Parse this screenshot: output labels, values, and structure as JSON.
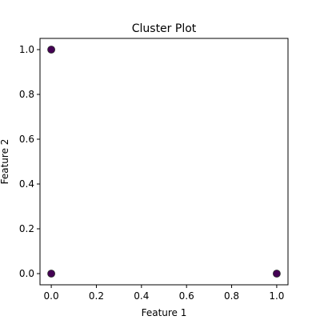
{
  "chart_data": {
    "type": "scatter",
    "title": "Cluster Plot",
    "xlabel": "Feature 1",
    "ylabel": "Feature 2",
    "xlim": [
      -0.05,
      1.05
    ],
    "ylim": [
      -0.05,
      1.05
    ],
    "xticks": [
      0.0,
      0.2,
      0.4,
      0.6,
      0.8,
      1.0
    ],
    "yticks": [
      0.0,
      0.2,
      0.4,
      0.6,
      0.8,
      1.0
    ],
    "grid": false,
    "marker_color": "#440154",
    "points": [
      {
        "x": 0.0,
        "y": 1.0
      },
      {
        "x": 0.0,
        "y": 0.0
      },
      {
        "x": 1.0,
        "y": 0.0
      }
    ]
  }
}
